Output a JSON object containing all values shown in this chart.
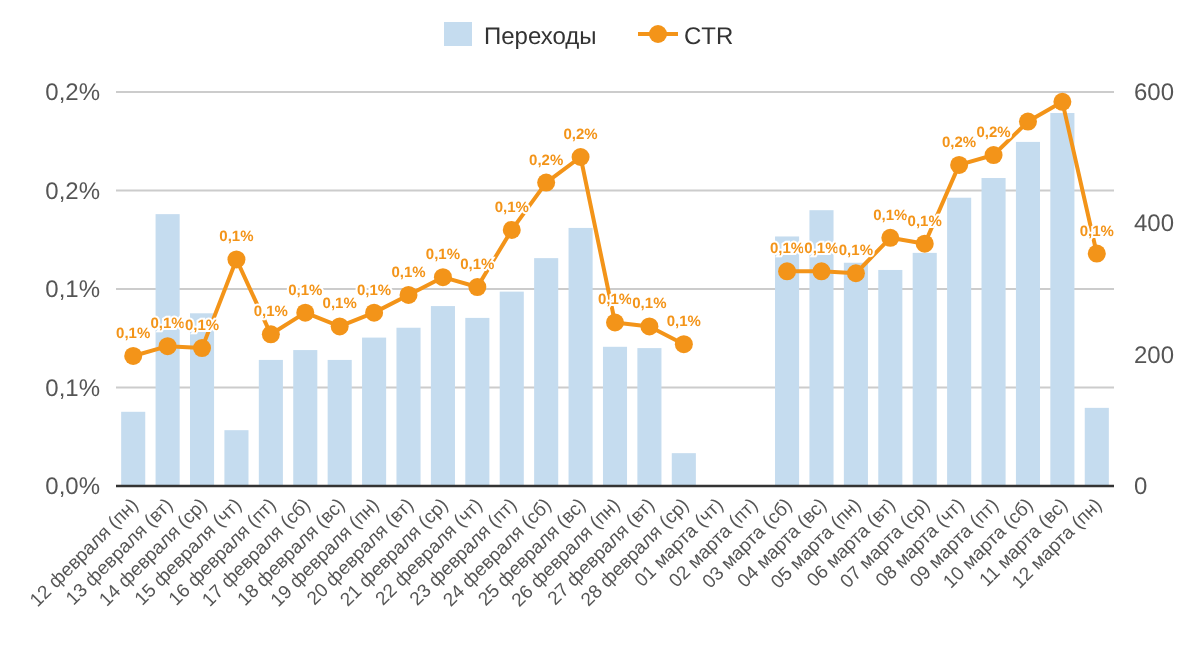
{
  "chart_data": {
    "type": "bar",
    "categories": [
      "12 февраля (пн)",
      "13 февраля (вт)",
      "14 февраля (ср)",
      "15 февраля (чт)",
      "16 февраля (пт)",
      "17 февраля (сб)",
      "18 февраля (вс)",
      "19 февраля (пн)",
      "20 февраля (вт)",
      "21 февраля (ср)",
      "22 февраля (чт)",
      "23 февраля (пт)",
      "24 февраля (сб)",
      "25 февраля (вс)",
      "26 февраля (пн)",
      "27 февраля (вт)",
      "28 февраля (ср)",
      "01 марта (чт)",
      "02 марта (пт)",
      "03 марта (сб)",
      "04 марта (вс)",
      "05 марта (пн)",
      "06 марта (вт)",
      "07 марта (ср)",
      "08 марта (чт)",
      "09 марта (пт)",
      "10 марта (сб)",
      "11 марта (вс)",
      "12 марта (пн)"
    ],
    "series": [
      {
        "name": "Переходы",
        "axis": "y2",
        "color": "#c5dcef",
        "values": [
          113,
          414,
          263,
          85,
          192,
          207,
          192,
          226,
          241,
          274,
          256,
          296,
          347,
          393,
          212,
          210,
          50,
          null,
          null,
          380,
          420,
          340,
          329,
          355,
          439,
          469,
          524,
          568,
          119
        ]
      },
      {
        "name": "CTR",
        "type": "line",
        "axis": "y",
        "color": "#f39419",
        "values": [
          0.066,
          0.071,
          0.07,
          0.115,
          0.077,
          0.088,
          0.081,
          0.088,
          0.097,
          0.106,
          0.101,
          0.13,
          0.154,
          0.167,
          0.083,
          0.081,
          0.072,
          null,
          null,
          0.109,
          0.109,
          0.108,
          0.126,
          0.123,
          0.163,
          0.168,
          0.185,
          0.195,
          0.118
        ],
        "value_labels": [
          "0,1%",
          "0,1%",
          "0,1%",
          "0,1%",
          "0,1%",
          "0,1%",
          "0,1%",
          "0,1%",
          "0,1%",
          "0,1%",
          "0,1%",
          "0,1%",
          "0,2%",
          "0,2%",
          "0,1%",
          "0,1%",
          "0,1%",
          null,
          null,
          "0,1%",
          "0,1%",
          "0,1%",
          "0,1%",
          "0,1%",
          "0,2%",
          "0,2%",
          null,
          null,
          "0,1%"
        ]
      }
    ],
    "ylim": [
      0,
      0.2
    ],
    "yticks": [
      {
        "value": 0,
        "label": "0,0%"
      },
      {
        "value": 0.05,
        "label": "0,1%"
      },
      {
        "value": 0.1,
        "label": "0,1%"
      },
      {
        "value": 0.15,
        "label": "0,2%"
      },
      {
        "value": 0.2,
        "label": "0,2%"
      }
    ],
    "y2lim": [
      0,
      600
    ],
    "y2ticks": [
      0,
      200,
      400,
      600
    ],
    "grid": "y",
    "legend": "top",
    "marker": "circle",
    "line_style": "solid"
  }
}
